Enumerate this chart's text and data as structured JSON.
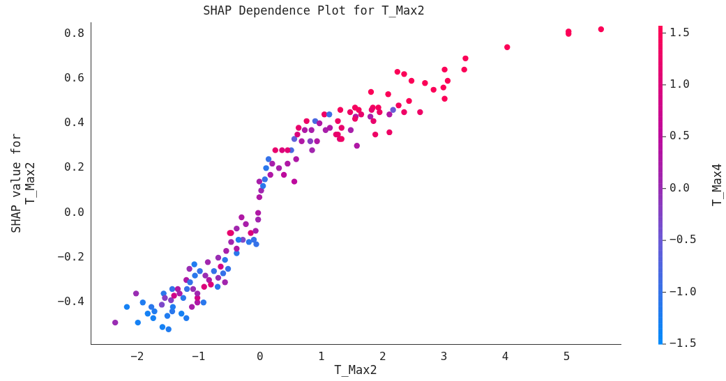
{
  "chart_data": {
    "type": "scatter",
    "title": "SHAP Dependence Plot for T_Max2",
    "xlabel": "T_Max2",
    "ylabel": "SHAP value for\nT_Max2",
    "clabel": "T_Max4",
    "xlim": [
      -2.76,
      5.88
    ],
    "xticks": [
      -2,
      -1,
      0,
      1,
      2,
      3,
      4,
      5
    ],
    "ylim": [
      -0.586,
      0.85
    ],
    "yticks": [
      -0.4,
      -0.2,
      {
        "value": 0,
        "label": "0.0"
      },
      0.2,
      0.4,
      0.6,
      0.8
    ],
    "clim": [
      -1.5,
      1.57
    ],
    "cticks": [
      -1.5,
      {
        "value": -1,
        "label": "−1.0"
      },
      -0.5,
      {
        "value": 0,
        "label": "0.0"
      },
      0.5,
      {
        "value": 1,
        "label": "1.0"
      },
      1.5
    ],
    "grid": false,
    "legend": false,
    "marker": "circle",
    "x": [
      -2.36,
      -2.17,
      -2.02,
      -1.99,
      -1.91,
      -1.83,
      -1.77,
      -1.72,
      -1.74,
      -1.59,
      -1.49,
      -1.51,
      -1.43,
      -1.42,
      -1.28,
      -1.2,
      -1.57,
      -1.6,
      -1.55,
      -1.45,
      -1.43,
      -1.4,
      -1.34,
      -1.25,
      -1.31,
      -1.19,
      -1.11,
      -1.09,
      -1.02,
      -0.92,
      -1.02,
      -1.02,
      -0.91,
      -1.2,
      -1.14,
      -1.06,
      -1.15,
      -1.07,
      -0.98,
      -0.89,
      -0.85,
      -0.83,
      -0.8,
      -0.75,
      -0.68,
      -0.69,
      -0.68,
      -0.64,
      -0.6,
      -0.57,
      -0.57,
      -0.52,
      -0.55,
      -0.38,
      -0.47,
      -0.38,
      -0.47,
      -0.38,
      -0.3,
      -0.28,
      -0.23,
      -0.15,
      -0.18,
      -0.07,
      -0.03,
      -0.06,
      -0.03,
      -0.49,
      -0.01,
      0.02,
      -0.01,
      0.08,
      0.1,
      0.14,
      0.17,
      0.25,
      0.31,
      0.36,
      0.39,
      0.45,
      0.51,
      0.56,
      0.59,
      0.56,
      0.61,
      0.63,
      0.68,
      0.73,
      0.76,
      0.82,
      0.85,
      0.84,
      0.9,
      0.97,
      1.05,
      1.07,
      1.14,
      1.24,
      1.27,
      1.33,
      1.3,
      1.13,
      1.81,
      2.09,
      2.43,
      2.83,
      3.01,
      1.31,
      1.55,
      1.61,
      1.47,
      1.65,
      1.56,
      1.55,
      1.84,
      1.93,
      1.95,
      1.82,
      1.8,
      1.85,
      2.11,
      2.17,
      2.26,
      2.35,
      2.61,
      1.88,
      2.11,
      1.48,
      1.58,
      1.27,
      1.33,
      0.93,
      5.03,
      5.03,
      5.56,
      4.03,
      3.35,
      3.33,
      3.01,
      3.06,
      2.69,
      2.99,
      2.24,
      2.35,
      2.47,
      -0.35,
      -0.1,
      0.05,
      0.2,
      0.45
    ],
    "values": [
      -0.49,
      -0.42,
      -0.36,
      -0.49,
      -0.4,
      -0.45,
      -0.42,
      -0.44,
      -0.47,
      -0.51,
      -0.52,
      -0.46,
      -0.44,
      -0.42,
      -0.45,
      -0.47,
      -0.36,
      -0.41,
      -0.38,
      -0.39,
      -0.34,
      -0.37,
      -0.34,
      -0.38,
      -0.36,
      -0.34,
      -0.42,
      -0.34,
      -0.4,
      -0.4,
      -0.38,
      -0.36,
      -0.33,
      -0.3,
      -0.31,
      -0.28,
      -0.25,
      -0.23,
      -0.26,
      -0.28,
      -0.22,
      -0.3,
      -0.32,
      -0.26,
      -0.29,
      -0.33,
      -0.2,
      -0.24,
      -0.27,
      -0.21,
      -0.31,
      -0.25,
      -0.17,
      -0.18,
      -0.13,
      -0.16,
      -0.09,
      -0.07,
      -0.02,
      -0.12,
      -0.05,
      -0.09,
      -0.13,
      -0.08,
      0.0,
      -0.14,
      -0.03,
      -0.09,
      0.07,
      0.1,
      0.14,
      0.15,
      0.2,
      0.24,
      0.17,
      0.28,
      0.2,
      0.28,
      0.17,
      0.22,
      0.28,
      0.14,
      0.24,
      0.33,
      0.35,
      0.38,
      0.32,
      0.37,
      0.41,
      0.32,
      0.28,
      0.37,
      0.41,
      0.4,
      0.44,
      0.37,
      0.38,
      0.35,
      0.41,
      0.38,
      0.33,
      0.44,
      0.54,
      0.53,
      0.5,
      0.55,
      0.51,
      0.46,
      0.47,
      0.46,
      0.45,
      0.44,
      0.43,
      0.42,
      0.47,
      0.47,
      0.45,
      0.46,
      0.43,
      0.41,
      0.44,
      0.46,
      0.48,
      0.45,
      0.45,
      0.35,
      0.36,
      0.37,
      0.3,
      0.35,
      0.33,
      0.32,
      0.81,
      0.8,
      0.82,
      0.74,
      0.69,
      0.64,
      0.64,
      0.59,
      0.58,
      0.56,
      0.63,
      0.62,
      0.59,
      -0.12,
      -0.12,
      0.12,
      0.22,
      0.28
    ],
    "cvalues": [
      0.0,
      -1.3,
      0.0,
      -1.3,
      -1.2,
      -1.3,
      -1.1,
      -1.2,
      -1.3,
      -1.3,
      -1.2,
      -1.2,
      -1.1,
      -1.2,
      -1.3,
      -1.2,
      -1.1,
      -0.3,
      -0.2,
      -0.2,
      -1.0,
      0.8,
      0.3,
      -1.1,
      0.2,
      -1.0,
      0.2,
      0.0,
      0.3,
      -1.1,
      0.8,
      0.1,
      1.0,
      0.3,
      -1.0,
      -1.1,
      0.0,
      -1.2,
      -1.0,
      0.0,
      0.1,
      0.3,
      1.0,
      -1.0,
      0.0,
      -1.1,
      0.0,
      0.8,
      -1.0,
      -1.1,
      0.1,
      -1.0,
      0.2,
      -1.1,
      0.1,
      0.3,
      1.0,
      0.1,
      0.3,
      -0.3,
      0.2,
      1.0,
      -1.1,
      0.2,
      0.3,
      -1.0,
      0.1,
      1.2,
      0.3,
      0.1,
      0.2,
      -1.0,
      -1.1,
      -1.0,
      0.3,
      1.2,
      0.2,
      1.0,
      0.5,
      0.3,
      -0.8,
      0.5,
      0.3,
      -0.6,
      1.0,
      1.2,
      0.3,
      0.3,
      1.3,
      -0.2,
      0.1,
      0.2,
      -0.8,
      0.3,
      1.3,
      0.2,
      0.3,
      1.2,
      1.3,
      1.2,
      1.1,
      -0.9,
      1.5,
      1.5,
      1.5,
      1.5,
      1.5,
      1.4,
      1.4,
      1.4,
      1.3,
      1.2,
      0.3,
      1.3,
      1.4,
      1.4,
      1.3,
      1.2,
      0.2,
      1.2,
      0.3,
      -0.5,
      1.4,
      1.3,
      1.3,
      1.3,
      1.3,
      0.2,
      0.3,
      1.2,
      1.3,
      0.3,
      1.5,
      1.5,
      1.5,
      1.5,
      1.5,
      1.5,
      1.5,
      1.5,
      1.5,
      1.5,
      1.5,
      1.5,
      1.5,
      -1.2,
      -1.0,
      -1.1,
      0.2,
      1.1
    ]
  }
}
